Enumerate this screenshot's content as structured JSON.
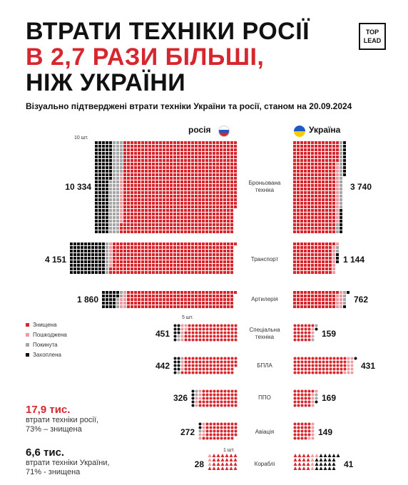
{
  "title": {
    "line1": "ВТРАТИ ТЕХНІКИ РОСІЇ",
    "line2": "В 2,7 РАЗИ БІЛЬШІ,",
    "line3": "НІЖ УКРАЇНИ"
  },
  "logo": {
    "line1": "TOP",
    "line2": "LEAD"
  },
  "subtitle": "Візуально підтверджені втрати техніки України та росії, станом на 20.09.2024",
  "columns": {
    "russia": "росія",
    "ukraine": "Україна"
  },
  "notes": {
    "ten_units": "10 шт.",
    "five_units": "5 шт.",
    "one_unit": "1 шт."
  },
  "legend": [
    {
      "label": "Знищена",
      "color": "#d7262e"
    },
    {
      "label": "Пошкоджена",
      "color": "#ee9aa0"
    },
    {
      "label": "Покинута",
      "color": "#a6a6a6"
    },
    {
      "label": "Захоплена",
      "color": "#111111"
    }
  ],
  "summary": {
    "russia_value": "17,9 тис.",
    "russia_line1": "втрати техніки росії,",
    "russia_line2": "73% – знищена",
    "ukraine_value": "6,6 тис.",
    "ukraine_line1": "втрати техніки України,",
    "ukraine_line2": "71% - знищена"
  },
  "chart_data": {
    "type": "table",
    "units_per_mark": {
      "Броньована техніка": 10,
      "Транспорт": 10,
      "Артилерія": 10,
      "Спеціальна техніка": 5,
      "БПЛА": 5,
      "ППО": 5,
      "Авіація": 5,
      "Кораблі": 1
    },
    "categories": [
      "Броньована техніка",
      "Транспорт",
      "Артилерія",
      "Спеціальна техніка",
      "БПЛА",
      "ППО",
      "Авіація",
      "Кораблі"
    ],
    "category_labels": [
      [
        "Броньована",
        "техніка"
      ],
      [
        "Транспорт"
      ],
      [
        "Артилерія"
      ],
      [
        "Спеціальна",
        "техніка"
      ],
      [
        "БПЛА"
      ],
      [
        "ППО"
      ],
      [
        "Авіація"
      ],
      [
        "Кораблі"
      ]
    ],
    "russia_total_labels": [
      "10 334",
      "4 151",
      "1 860",
      "451",
      "442",
      "326",
      "272",
      "28"
    ],
    "ukraine_total_labels": [
      "3 740",
      "1 144",
      "762",
      "159",
      "431",
      "169",
      "149",
      "41"
    ],
    "series": [
      {
        "name": "росія",
        "totals": [
          10334,
          4151,
          1860,
          451,
          442,
          326,
          272,
          28
        ],
        "captured": [
          1150,
          900,
          220,
          40,
          45,
          25,
          8,
          0
        ],
        "abandoned": [
          760,
          90,
          50,
          10,
          10,
          10,
          5,
          0
        ],
        "damaged": [
          140,
          70,
          80,
          35,
          15,
          30,
          30,
          3
        ]
      },
      {
        "name": "Україна",
        "totals": [
          3740,
          1144,
          762,
          159,
          431,
          169,
          149,
          41
        ],
        "captured": [
          170,
          30,
          20,
          5,
          5,
          5,
          0,
          20
        ],
        "abandoned": [
          220,
          20,
          40,
          10,
          0,
          10,
          0,
          0
        ],
        "damaged": [
          170,
          90,
          90,
          15,
          55,
          25,
          30,
          5
        ]
      }
    ]
  }
}
